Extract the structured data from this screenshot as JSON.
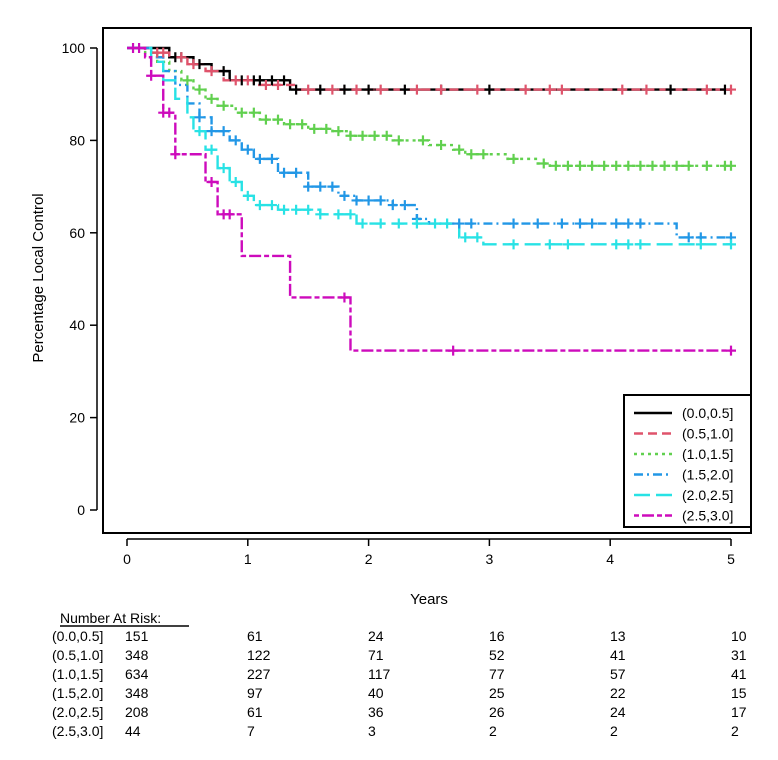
{
  "chart_data": {
    "type": "line",
    "subtype": "kaplan-meier",
    "title": "",
    "xlabel": "Years",
    "ylabel": "Percentage Local Control",
    "xlim": [
      0,
      5
    ],
    "ylim": [
      0,
      100
    ],
    "x_ticks": [
      0,
      1,
      2,
      3,
      4,
      5
    ],
    "y_ticks": [
      0,
      20,
      40,
      60,
      80,
      100
    ],
    "grid": false,
    "legend_position": "bottom-right",
    "colors": {
      "(0.0,0.5]": "#000000",
      "(0.5,1.0]": "#df536b",
      "(1.0,1.5]": "#61d04f",
      "(1.5,2.0]": "#2297e6",
      "(2.0,2.5]": "#28e2e5",
      "(2.5,3.0]": "#cd0bbc"
    },
    "series": [
      {
        "name": "(0.0,0.5]",
        "line_style": "solid",
        "steps": [
          [
            0,
            100
          ],
          [
            0.15,
            100
          ],
          [
            0.35,
            98
          ],
          [
            0.55,
            96.5
          ],
          [
            0.7,
            95
          ],
          [
            0.85,
            93
          ],
          [
            1.35,
            93
          ],
          [
            1.35,
            91
          ],
          [
            5,
            91
          ]
        ],
        "censor_x": [
          0.4,
          0.45,
          0.6,
          0.8,
          0.95,
          1.05,
          1.1,
          1.2,
          1.3,
          1.4,
          1.6,
          1.8,
          2.0,
          2.3,
          2.6,
          3.0,
          4.5,
          4.95
        ]
      },
      {
        "name": "(0.5,1.0]",
        "line_style": "dashed",
        "steps": [
          [
            0,
            100
          ],
          [
            0.2,
            99
          ],
          [
            0.35,
            98
          ],
          [
            0.5,
            96.5
          ],
          [
            0.65,
            95
          ],
          [
            0.8,
            93
          ],
          [
            1.05,
            92
          ],
          [
            1.4,
            91
          ],
          [
            5,
            91
          ]
        ],
        "censor_x": [
          0.25,
          0.3,
          0.45,
          0.55,
          0.7,
          0.9,
          1.0,
          1.15,
          1.25,
          1.5,
          1.7,
          1.9,
          2.1,
          2.4,
          2.6,
          2.9,
          3.3,
          3.5,
          3.6,
          4.1,
          4.3,
          4.8,
          5.0
        ]
      },
      {
        "name": "(1.0,1.5]",
        "line_style": "dotted",
        "steps": [
          [
            0,
            100
          ],
          [
            0.15,
            99
          ],
          [
            0.25,
            97
          ],
          [
            0.35,
            95
          ],
          [
            0.45,
            93
          ],
          [
            0.55,
            91
          ],
          [
            0.65,
            89
          ],
          [
            0.75,
            87.5
          ],
          [
            0.9,
            86
          ],
          [
            1.1,
            84.5
          ],
          [
            1.3,
            83.5
          ],
          [
            1.5,
            82.5
          ],
          [
            1.7,
            82
          ],
          [
            1.85,
            81
          ],
          [
            2.2,
            80
          ],
          [
            2.5,
            79
          ],
          [
            2.7,
            78
          ],
          [
            2.8,
            77
          ],
          [
            3.15,
            76
          ],
          [
            3.4,
            75
          ],
          [
            3.5,
            74.5
          ],
          [
            5,
            74.5
          ]
        ],
        "censor_x": [
          0.5,
          0.6,
          0.7,
          0.8,
          0.95,
          1.05,
          1.15,
          1.25,
          1.35,
          1.45,
          1.55,
          1.65,
          1.75,
          1.85,
          1.95,
          2.05,
          2.15,
          2.25,
          2.45,
          2.6,
          2.75,
          2.85,
          2.95,
          3.2,
          3.45,
          3.55,
          3.65,
          3.75,
          3.85,
          3.95,
          4.05,
          4.15,
          4.25,
          4.35,
          4.45,
          4.55,
          4.65,
          4.8,
          4.95,
          5.0
        ]
      },
      {
        "name": "(1.5,2.0]",
        "line_style": "dashdot",
        "steps": [
          [
            0,
            100
          ],
          [
            0.2,
            98
          ],
          [
            0.3,
            95
          ],
          [
            0.4,
            92
          ],
          [
            0.5,
            88
          ],
          [
            0.6,
            85
          ],
          [
            0.7,
            82
          ],
          [
            0.85,
            80
          ],
          [
            0.95,
            78
          ],
          [
            1.05,
            76
          ],
          [
            1.25,
            73
          ],
          [
            1.5,
            70
          ],
          [
            1.75,
            68
          ],
          [
            1.9,
            67
          ],
          [
            2.2,
            66
          ],
          [
            2.4,
            63
          ],
          [
            2.5,
            62
          ],
          [
            4.55,
            62
          ],
          [
            4.55,
            59
          ],
          [
            5,
            59
          ]
        ],
        "censor_x": [
          0.6,
          0.7,
          0.8,
          0.9,
          1.0,
          1.1,
          1.2,
          1.3,
          1.4,
          1.5,
          1.6,
          1.7,
          1.8,
          1.9,
          2.0,
          2.1,
          2.2,
          2.3,
          2.4,
          2.75,
          2.85,
          3.2,
          3.4,
          3.6,
          3.75,
          3.85,
          4.05,
          4.15,
          4.25,
          4.65,
          4.75,
          5.0
        ]
      },
      {
        "name": "(2.0,2.5]",
        "line_style": "longdash",
        "steps": [
          [
            0,
            100
          ],
          [
            0.2,
            97
          ],
          [
            0.3,
            93
          ],
          [
            0.4,
            89
          ],
          [
            0.5,
            85
          ],
          [
            0.55,
            82
          ],
          [
            0.65,
            78
          ],
          [
            0.75,
            74
          ],
          [
            0.85,
            71
          ],
          [
            0.95,
            68
          ],
          [
            1.05,
            66
          ],
          [
            1.25,
            65
          ],
          [
            1.6,
            64
          ],
          [
            1.9,
            62
          ],
          [
            2.5,
            62
          ],
          [
            2.75,
            59
          ],
          [
            2.95,
            57.5
          ],
          [
            5,
            57.5
          ]
        ],
        "censor_x": [
          0.6,
          0.7,
          0.8,
          0.9,
          1.0,
          1.1,
          1.2,
          1.3,
          1.4,
          1.5,
          1.6,
          1.75,
          1.85,
          1.95,
          2.1,
          2.25,
          2.4,
          2.55,
          2.65,
          2.8,
          2.9,
          3.2,
          3.5,
          3.65,
          4.05,
          4.15,
          4.25,
          4.75,
          5.0
        ]
      },
      {
        "name": "(2.5,3.0]",
        "line_style": "twodash",
        "steps": [
          [
            0,
            100
          ],
          [
            0.15,
            98
          ],
          [
            0.2,
            94
          ],
          [
            0.3,
            86
          ],
          [
            0.4,
            77
          ],
          [
            0.65,
            71
          ],
          [
            0.75,
            64
          ],
          [
            0.95,
            55
          ],
          [
            1.35,
            46
          ],
          [
            1.85,
            46
          ],
          [
            1.85,
            34.5
          ],
          [
            5,
            34.5
          ]
        ],
        "censor_x": [
          0.05,
          0.1,
          0.2,
          0.3,
          0.35,
          0.4,
          0.7,
          0.8,
          0.85,
          1.8,
          2.7,
          5.0
        ]
      }
    ],
    "risk_table": {
      "title": "Number At Risk:",
      "time_points": [
        0,
        1,
        2,
        3,
        4,
        5
      ],
      "rows": [
        {
          "label": "(0.0,0.5]",
          "values": [
            "151",
            "61",
            "24",
            "16",
            "13",
            "10"
          ]
        },
        {
          "label": "(0.5,1.0]",
          "values": [
            "348",
            "122",
            "71",
            "52",
            "41",
            "31"
          ]
        },
        {
          "label": "(1.0,1.5]",
          "values": [
            "634",
            "227",
            "117",
            "77",
            "57",
            "41"
          ]
        },
        {
          "label": "(1.5,2.0]",
          "values": [
            "348",
            "97",
            "40",
            "25",
            "22",
            "15"
          ]
        },
        {
          "label": "(2.0,2.5]",
          "values": [
            "208",
            "61",
            "36",
            "26",
            "24",
            "17"
          ]
        },
        {
          "label": "(2.5,3.0]",
          "values": [
            "44",
            "7",
            "3",
            "2",
            "2",
            "2"
          ]
        }
      ]
    }
  }
}
